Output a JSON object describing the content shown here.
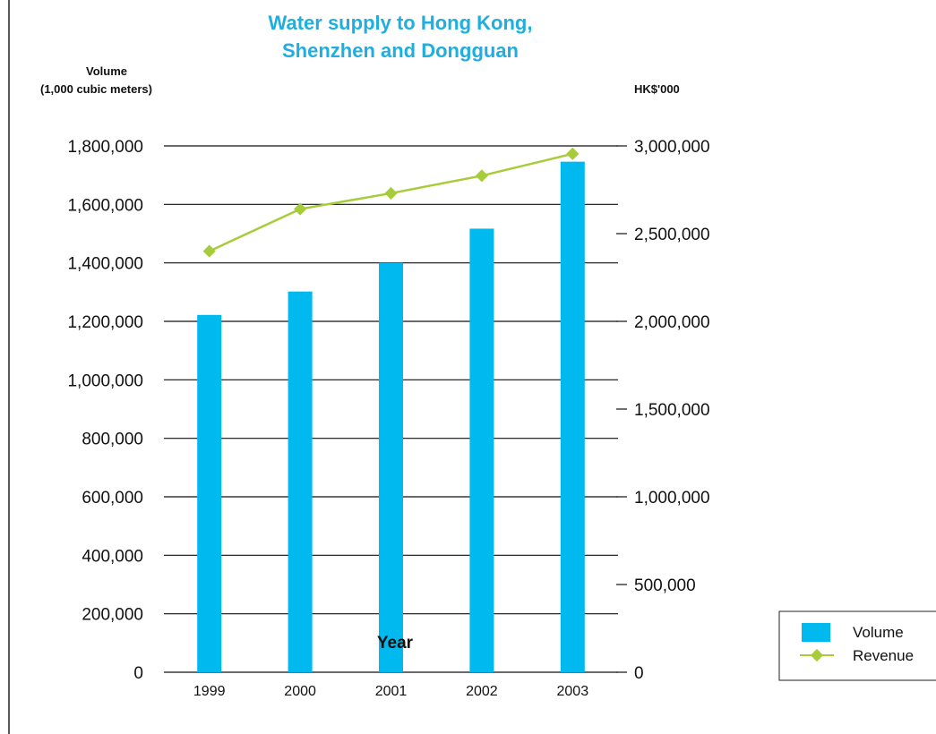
{
  "chart_data": {
    "type": "bar",
    "title_lines": [
      "Water supply to Hong Kong,",
      "Shenzhen and Dongguan"
    ],
    "left_axis_title_lines": [
      "Volume",
      "(1,000 cubic meters)"
    ],
    "right_axis_title": "HK$'000",
    "xlabel": "Year",
    "categories": [
      "1999",
      "2000",
      "2001",
      "2002",
      "2003"
    ],
    "series": [
      {
        "name": "Volume",
        "kind": "bar",
        "axis": "left",
        "values": [
          1222000,
          1302000,
          1400000,
          1517000,
          1746000
        ]
      },
      {
        "name": "Revenue",
        "kind": "line",
        "axis": "right",
        "values": [
          2400000,
          2640000,
          2730000,
          2830000,
          2955000
        ]
      }
    ],
    "ylim_left": [
      0,
      1800000
    ],
    "ylim_right": [
      0,
      3000000
    ],
    "left_ticks": [
      "0",
      "200,000",
      "400,000",
      "600,000",
      "800,000",
      "1,000,000",
      "1,200,000",
      "1,400,000",
      "1,600,000",
      "1,800,000"
    ],
    "left_tick_values": [
      0,
      200000,
      400000,
      600000,
      800000,
      1000000,
      1200000,
      1400000,
      1600000,
      1800000
    ],
    "right_ticks": [
      "0",
      "500,000",
      "1,000,000",
      "1,500,000",
      "2,000,000",
      "2,500,000",
      "3,000,000"
    ],
    "right_tick_values": [
      0,
      500000,
      1000000,
      1500000,
      2000000,
      2500000,
      3000000
    ],
    "grid": true,
    "legend_position": "bottom-right",
    "colors": {
      "title": "#1eaee0",
      "bar": "#00b9ef",
      "line": "#a6cc3a",
      "grid": "#111111"
    }
  }
}
